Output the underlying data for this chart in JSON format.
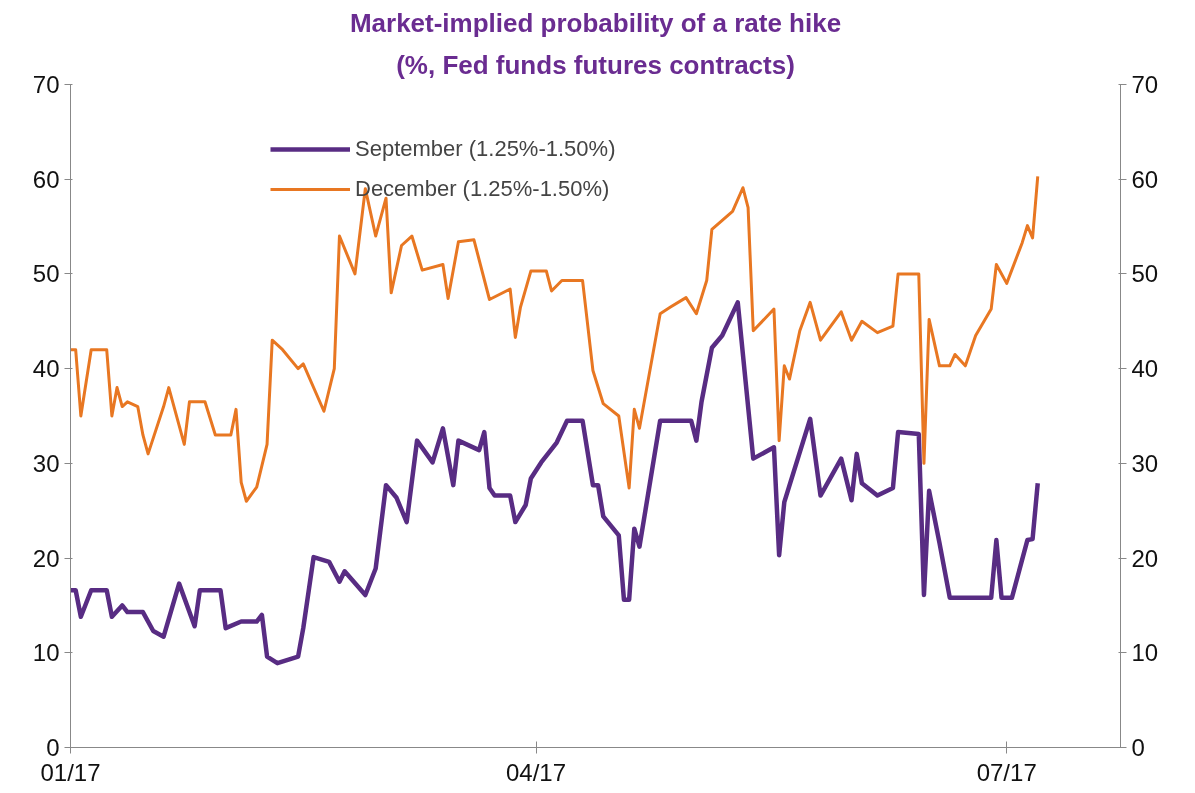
{
  "chart_data": {
    "type": "line",
    "title": "Market-implied probability of a rate hike",
    "subtitle": "(%, Fed funds futures contracts)",
    "xlim": [
      "2017-01-01",
      "2017-07-23"
    ],
    "xticks": [
      {
        "value": "2017-01-01",
        "label": "01/17"
      },
      {
        "value": "2017-04-01",
        "label": "04/17"
      },
      {
        "value": "2017-07-01",
        "label": "07/17"
      }
    ],
    "ylim": [
      0,
      70
    ],
    "yticks": [
      0,
      10,
      20,
      30,
      40,
      50,
      60,
      70
    ],
    "y2lim": [
      0,
      70
    ],
    "y2ticks": [
      0,
      10,
      20,
      30,
      40,
      50,
      60,
      70
    ],
    "grid": false,
    "legend": "top left",
    "line_style": "solid",
    "series": [
      {
        "name": "September (1.25%-1.50%)",
        "color": "#582c83",
        "x": [
          "2017-01-01",
          "2017-01-02",
          "2017-01-03",
          "2017-01-05",
          "2017-01-08",
          "2017-01-09",
          "2017-01-11",
          "2017-01-12",
          "2017-01-15",
          "2017-01-17",
          "2017-01-19",
          "2017-01-22",
          "2017-01-25",
          "2017-01-26",
          "2017-01-30",
          "2017-01-31",
          "2017-02-03",
          "2017-02-06",
          "2017-02-07",
          "2017-02-08",
          "2017-02-10",
          "2017-02-14",
          "2017-02-15",
          "2017-02-17",
          "2017-02-20",
          "2017-02-22",
          "2017-02-23",
          "2017-02-27",
          "2017-03-01",
          "2017-03-03",
          "2017-03-05",
          "2017-03-07",
          "2017-03-09",
          "2017-03-12",
          "2017-03-14",
          "2017-03-16",
          "2017-03-17",
          "2017-03-21",
          "2017-03-22",
          "2017-03-23",
          "2017-03-24",
          "2017-03-27",
          "2017-03-28",
          "2017-03-30",
          "2017-03-31",
          "2017-04-02",
          "2017-04-05",
          "2017-04-07",
          "2017-04-10",
          "2017-04-12",
          "2017-04-13",
          "2017-04-14",
          "2017-04-17",
          "2017-04-18",
          "2017-04-19",
          "2017-04-20",
          "2017-04-21",
          "2017-04-25",
          "2017-05-01",
          "2017-05-02",
          "2017-05-03",
          "2017-05-05",
          "2017-05-07",
          "2017-05-10",
          "2017-05-13",
          "2017-05-17",
          "2017-05-18",
          "2017-05-19",
          "2017-05-24",
          "2017-05-26",
          "2017-05-30",
          "2017-06-01",
          "2017-06-02",
          "2017-06-03",
          "2017-06-06",
          "2017-06-09",
          "2017-06-10",
          "2017-06-14",
          "2017-06-15",
          "2017-06-16",
          "2017-06-18",
          "2017-06-20",
          "2017-06-28",
          "2017-06-29",
          "2017-06-30",
          "2017-07-02",
          "2017-07-05",
          "2017-07-06",
          "2017-07-07"
        ],
        "values": [
          16.6,
          16.6,
          13.8,
          16.6,
          16.6,
          13.8,
          15,
          14.3,
          14.3,
          12.3,
          11.7,
          17.3,
          12.8,
          16.6,
          16.6,
          12.6,
          13.3,
          13.3,
          14,
          9.6,
          8.9,
          9.6,
          12.6,
          20.1,
          19.6,
          17.5,
          18.6,
          16.1,
          18.9,
          27.7,
          26.4,
          23.8,
          32.4,
          30.1,
          33.7,
          27.7,
          32.4,
          31.4,
          33.3,
          27.4,
          26.6,
          26.6,
          23.8,
          25.6,
          28.4,
          30.1,
          32.2,
          34.5,
          34.5,
          27.7,
          27.7,
          24.4,
          22.4,
          15.6,
          15.6,
          23.1,
          21.2,
          34.5,
          34.5,
          32.4,
          36.5,
          42.2,
          43.5,
          47,
          30.5,
          31.7,
          20.3,
          25.9,
          34.7,
          26.6,
          30.5,
          26.1,
          31,
          27.9,
          26.6,
          27.4,
          33.3,
          33.1,
          16.1,
          27.1,
          21.6,
          15.8,
          15.8,
          21.9,
          15.8,
          15.8,
          21.9,
          22,
          27.9
        ]
      },
      {
        "name": "December (1.25%-1.50%)",
        "color": "#e87722",
        "x": [
          "2017-01-01",
          "2017-01-02",
          "2017-01-03",
          "2017-01-05",
          "2017-01-08",
          "2017-01-09",
          "2017-01-10",
          "2017-01-11",
          "2017-01-12",
          "2017-01-14",
          "2017-01-15",
          "2017-01-16",
          "2017-01-19",
          "2017-01-20",
          "2017-01-23",
          "2017-01-24",
          "2017-01-27",
          "2017-01-29",
          "2017-02-01",
          "2017-02-02",
          "2017-02-03",
          "2017-02-04",
          "2017-02-06",
          "2017-02-08",
          "2017-02-09",
          "2017-02-11",
          "2017-02-14",
          "2017-02-15",
          "2017-02-19",
          "2017-02-21",
          "2017-02-22",
          "2017-02-25",
          "2017-02-27",
          "2017-03-01",
          "2017-03-03",
          "2017-03-04",
          "2017-03-06",
          "2017-03-08",
          "2017-03-10",
          "2017-03-14",
          "2017-03-15",
          "2017-03-17",
          "2017-03-20",
          "2017-03-23",
          "2017-03-27",
          "2017-03-28",
          "2017-03-29",
          "2017-03-31",
          "2017-04-03",
          "2017-04-04",
          "2017-04-06",
          "2017-04-10",
          "2017-04-12",
          "2017-04-14",
          "2017-04-17",
          "2017-04-19",
          "2017-04-20",
          "2017-04-21",
          "2017-04-25",
          "2017-04-27",
          "2017-04-30",
          "2017-05-02",
          "2017-05-04",
          "2017-05-05",
          "2017-05-09",
          "2017-05-11",
          "2017-05-12",
          "2017-05-13",
          "2017-05-17",
          "2017-05-18",
          "2017-05-19",
          "2017-05-20",
          "2017-05-22",
          "2017-05-24",
          "2017-05-26",
          "2017-05-30",
          "2017-06-01",
          "2017-06-03",
          "2017-06-06",
          "2017-06-09",
          "2017-06-10",
          "2017-06-14",
          "2017-06-15",
          "2017-06-16",
          "2017-06-18",
          "2017-06-20",
          "2017-06-21",
          "2017-06-23",
          "2017-06-25",
          "2017-06-28",
          "2017-06-29",
          "2017-07-01",
          "2017-07-04",
          "2017-07-05",
          "2017-07-06",
          "2017-07-07"
        ],
        "values": [
          42,
          42,
          35,
          42,
          42,
          35,
          38,
          36,
          36.5,
          36,
          33,
          31,
          36,
          38,
          32,
          36.5,
          36.5,
          33,
          33,
          35.7,
          28,
          26,
          27.5,
          32,
          43,
          42,
          40,
          40.5,
          35.5,
          40,
          54,
          50,
          59,
          54,
          58,
          48,
          53,
          54,
          50.4,
          51,
          47.4,
          53.4,
          53.6,
          47.3,
          48.4,
          43.3,
          46.5,
          50.3,
          50.3,
          48.2,
          49.3,
          49.3,
          39.8,
          36.3,
          35,
          27.4,
          35.7,
          33.7,
          45.8,
          46.5,
          47.5,
          45.8,
          49.3,
          54.7,
          56.6,
          59.1,
          57,
          44,
          46.3,
          32.4,
          40.3,
          38.9,
          44,
          47,
          43,
          46,
          43,
          45,
          43.8,
          44.5,
          50,
          50,
          30,
          45.2,
          40.3,
          40.3,
          41.5,
          40.3,
          43.5,
          46.3,
          51,
          49,
          53.3,
          55.1,
          53.8,
          60.3
        ]
      }
    ]
  }
}
